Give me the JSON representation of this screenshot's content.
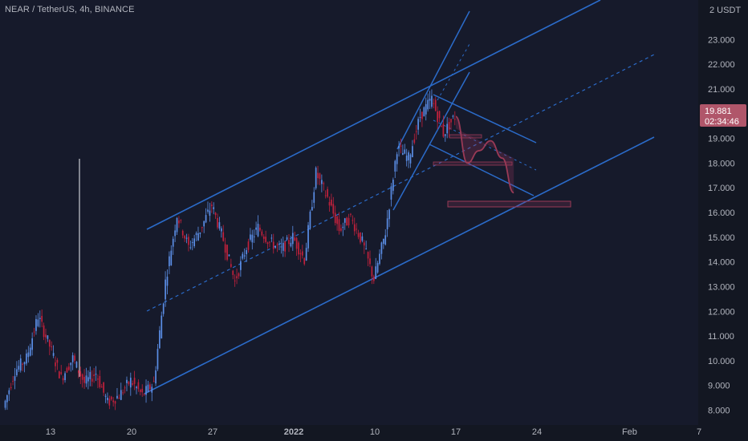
{
  "header": {
    "symbol": "NEAR / TetherUS, 4h, BINANCE"
  },
  "price_axis": {
    "unit": "2 USDT"
  },
  "current_price": {
    "value": "19.881",
    "countdown": "02:34:46",
    "color": "#b0566a"
  },
  "colors": {
    "up": "#5b8ee6",
    "down": "#c2213c",
    "trend": "#2b6bc9",
    "projection": "#9a3a56",
    "label": "#b2b5be"
  },
  "chart_data": {
    "type": "candlestick",
    "ylim": [
      7.4,
      24.6
    ],
    "y_ticks": [
      "8.000",
      "9.000",
      "10.000",
      "11.000",
      "12.000",
      "13.000",
      "14.000",
      "15.000",
      "16.000",
      "17.000",
      "18.000",
      "19.000",
      "21.000",
      "22.000",
      "23.000"
    ],
    "x_ticks": [
      "13",
      "20",
      "27",
      "2022",
      "10",
      "17",
      "24",
      "Feb",
      "7"
    ],
    "price_path": [
      {
        "date": "Dec 09",
        "price": 8.1
      },
      {
        "date": "Dec 10",
        "price": 9.6
      },
      {
        "date": "Dec 11",
        "price": 10.1
      },
      {
        "date": "Dec 12",
        "price": 11.8
      },
      {
        "date": "Dec 13",
        "price": 10.6
      },
      {
        "date": "Dec 14",
        "price": 9.3
      },
      {
        "date": "Dec 15",
        "price": 10.1
      },
      {
        "date": "Dec 16",
        "price": 9.1
      },
      {
        "date": "Dec 17",
        "price": 9.5
      },
      {
        "date": "Dec 18",
        "price": 8.3
      },
      {
        "date": "Dec 19",
        "price": 8.6
      },
      {
        "date": "Dec 20",
        "price": 9.2
      },
      {
        "date": "Dec 21",
        "price": 8.6
      },
      {
        "date": "Dec 22",
        "price": 9.1
      },
      {
        "date": "Dec 23",
        "price": 13.2
      },
      {
        "date": "Dec 24",
        "price": 15.9
      },
      {
        "date": "Dec 25",
        "price": 14.6
      },
      {
        "date": "Dec 26",
        "price": 15.3
      },
      {
        "date": "Dec 27",
        "price": 16.3
      },
      {
        "date": "Dec 28",
        "price": 14.9
      },
      {
        "date": "Dec 29",
        "price": 13.2
      },
      {
        "date": "Dec 30",
        "price": 14.6
      },
      {
        "date": "Dec 31",
        "price": 15.4
      },
      {
        "date": "Jan 01",
        "price": 14.8
      },
      {
        "date": "Jan 02",
        "price": 14.5
      },
      {
        "date": "Jan 03",
        "price": 15.0
      },
      {
        "date": "Jan 04",
        "price": 14.1
      },
      {
        "date": "Jan 05",
        "price": 17.6
      },
      {
        "date": "Jan 06",
        "price": 16.6
      },
      {
        "date": "Jan 07",
        "price": 15.3
      },
      {
        "date": "Jan 08",
        "price": 15.8
      },
      {
        "date": "Jan 09",
        "price": 14.8
      },
      {
        "date": "Jan 10",
        "price": 13.3
      },
      {
        "date": "Jan 11",
        "price": 15.2
      },
      {
        "date": "Jan 12",
        "price": 18.6
      },
      {
        "date": "Jan 13",
        "price": 18.2
      },
      {
        "date": "Jan 14",
        "price": 19.9
      },
      {
        "date": "Jan 15",
        "price": 20.6
      },
      {
        "date": "Jan 16",
        "price": 19.2
      },
      {
        "date": "Jan 17",
        "price": 19.9
      }
    ],
    "projection": [
      {
        "date": "Jan 17",
        "price": 19.88
      },
      {
        "date": "Jan 18",
        "price": 18.0
      },
      {
        "date": "Jan 19",
        "price": 18.5
      },
      {
        "date": "Jan 20",
        "price": 18.9
      },
      {
        "date": "Jan 21",
        "price": 18.2
      },
      {
        "date": "Jan 22",
        "price": 16.8
      }
    ]
  }
}
